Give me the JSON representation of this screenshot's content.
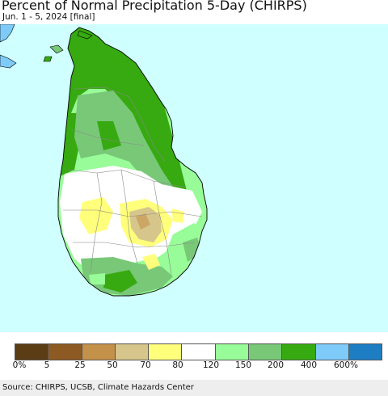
{
  "header": {
    "title": "Percent of Normal Precipitation 5-Day (CHIRPS)",
    "subtitle": "Jun. 1 - 5, 2024 [final]"
  },
  "map": {
    "region": "Sri Lanka",
    "colors": {
      "ocean": "#cfffff",
      "land_mainland": "#7ec0ff",
      "boundary": "#000000",
      "district_line": "#777777"
    }
  },
  "legend": {
    "swatches": [
      {
        "color": "#5a3d14"
      },
      {
        "color": "#8c5a22"
      },
      {
        "color": "#c4914a"
      },
      {
        "color": "#d6c68c"
      },
      {
        "color": "#ffff7c"
      },
      {
        "color": "#ffffff"
      },
      {
        "color": "#98fc98"
      },
      {
        "color": "#78c878"
      },
      {
        "color": "#36aa10"
      },
      {
        "color": "#7ecbfa"
      },
      {
        "color": "#1e7ec3"
      }
    ],
    "labels": [
      "0%",
      "5",
      "25",
      "50",
      "70",
      "80",
      "120",
      "150",
      "200",
      "400",
      "600%"
    ]
  },
  "footer": {
    "source": "Source: CHIRPS, UCSB, Climate Hazards Center"
  }
}
